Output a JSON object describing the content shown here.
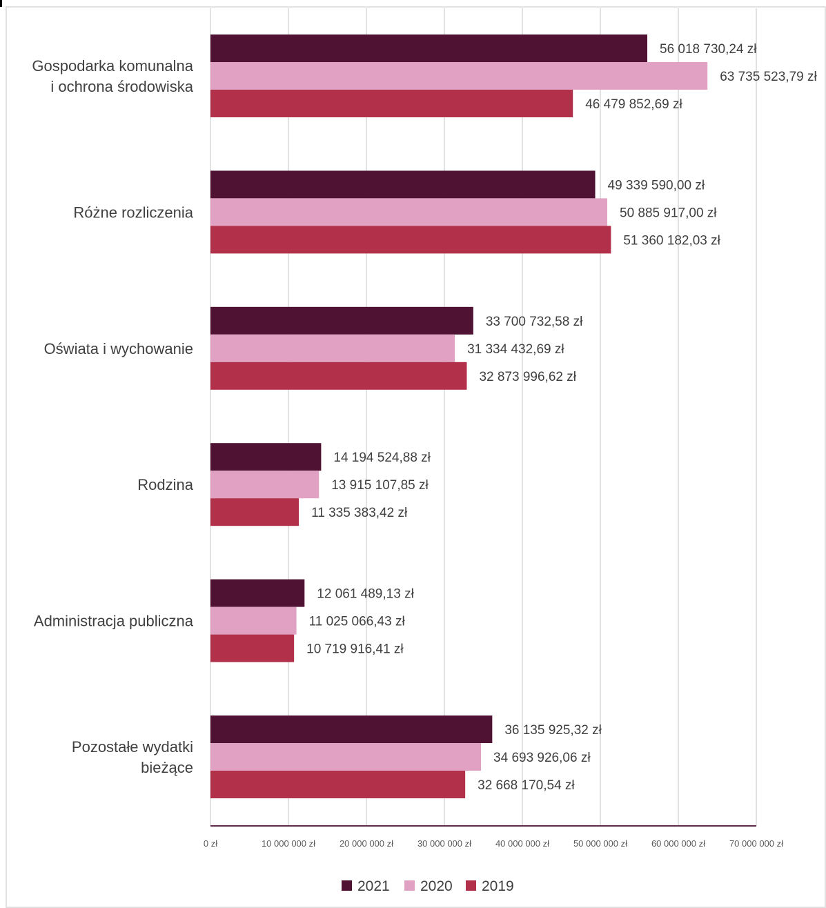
{
  "chart_data": {
    "type": "bar",
    "orientation": "horizontal",
    "categories": [
      [
        "Gospodarka komunalna",
        "i ochrona środowiska"
      ],
      [
        "Różne rozliczenia"
      ],
      [
        "Oświata i wychowanie"
      ],
      [
        "Rodzina"
      ],
      [
        "Administracja publiczna"
      ],
      [
        "Pozostałe wydatki",
        "bieżące"
      ]
    ],
    "series": [
      {
        "name": "2021",
        "color": "#4f1232",
        "values": [
          56018730.24,
          49339590.0,
          33700732.58,
          14194524.88,
          12061489.13,
          36135925.32
        ],
        "labels": [
          "56 018 730,24 zł",
          "49 339 590,00 zł",
          "33 700 732,58 zł",
          "14 194 524,88 zł",
          "12 061 489,13 zł",
          "36 135 925,32 zł"
        ]
      },
      {
        "name": "2020",
        "color": "#e0a1c3",
        "values": [
          63735523.79,
          50885917.0,
          31334432.69,
          13915107.85,
          11025066.43,
          34693926.06
        ],
        "labels": [
          "63 735 523,79 zł",
          "50 885 917,00 zł",
          "31 334 432,69 zł",
          "13 915 107,85 zł",
          "11 025 066,43 zł",
          "34 693 926,06 zł"
        ]
      },
      {
        "name": "2019",
        "color": "#b23049",
        "values": [
          46479852.69,
          51360182.03,
          32873996.62,
          11335383.42,
          10719916.41,
          32668170.54
        ],
        "labels": [
          "46 479 852,69 zł",
          "51 360 182,03 zł",
          "32 873 996,62 zł",
          "11 335 383,42 zł",
          "10 719 916,41 zł",
          "32 668 170,54 zł"
        ]
      }
    ],
    "xlim": [
      0,
      70000000
    ],
    "xticks": [
      0,
      10000000,
      20000000,
      30000000,
      40000000,
      50000000,
      60000000,
      70000000
    ],
    "xtick_labels": [
      "0 zł",
      "10 000 000 zł",
      "20 000 000 zł",
      "30 000 000 zł",
      "40 000 000 zł",
      "50 000 000 zł",
      "60 000 000 zł",
      "70 000 000 zł"
    ],
    "grid": true,
    "legend_position": "bottom",
    "legend_order": [
      "2021",
      "2020",
      "2019"
    ]
  }
}
